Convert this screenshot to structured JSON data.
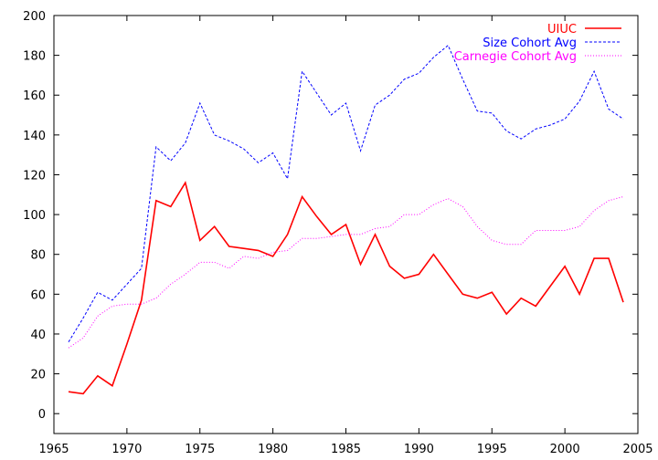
{
  "chart_data": {
    "type": "line",
    "title": "",
    "xlabel": "",
    "ylabel": "",
    "xlim": [
      1965,
      2005
    ],
    "ylim": [
      -10,
      200
    ],
    "xticks": [
      1965,
      1970,
      1975,
      1980,
      1985,
      1990,
      1995,
      2000,
      2005
    ],
    "yticks": [
      0,
      20,
      40,
      60,
      80,
      100,
      120,
      140,
      160,
      180,
      200
    ],
    "grid": false,
    "legend_position": "top-right",
    "series": [
      {
        "name": "UIUC",
        "color": "#ff0000",
        "style": "solid",
        "x": [
          1966,
          1967,
          1968,
          1969,
          1970,
          1971,
          1972,
          1973,
          1974,
          1975,
          1976,
          1977,
          1978,
          1979,
          1980,
          1981,
          1982,
          1983,
          1984,
          1985,
          1986,
          1987,
          1988,
          1989,
          1990,
          1991,
          1992,
          1993,
          1994,
          1995,
          1996,
          1997,
          1998,
          1999,
          2000,
          2001,
          2002,
          2003,
          2004
        ],
        "y": [
          11,
          10,
          19,
          14,
          35,
          57,
          107,
          104,
          116,
          87,
          94,
          84,
          83,
          82,
          79,
          90,
          109,
          99,
          90,
          95,
          75,
          90,
          74,
          68,
          70,
          80,
          70,
          60,
          58,
          61,
          50,
          58,
          54,
          64,
          74,
          60,
          78,
          78,
          56
        ]
      },
      {
        "name": "Size Cohort Avg",
        "color": "#0000ff",
        "style": "dashed",
        "x": [
          1966,
          1967,
          1968,
          1969,
          1970,
          1971,
          1972,
          1973,
          1974,
          1975,
          1976,
          1977,
          1978,
          1979,
          1980,
          1981,
          1982,
          1983,
          1984,
          1985,
          1986,
          1987,
          1988,
          1989,
          1990,
          1991,
          1992,
          1993,
          1994,
          1995,
          1996,
          1997,
          1998,
          1999,
          2000,
          2001,
          2002,
          2003,
          2004
        ],
        "y": [
          36,
          48,
          61,
          57,
          65,
          73,
          134,
          127,
          136,
          156,
          140,
          137,
          133,
          126,
          131,
          118,
          172,
          161,
          150,
          156,
          132,
          155,
          160,
          168,
          171,
          179,
          185,
          168,
          152,
          151,
          142,
          138,
          143,
          145,
          148,
          157,
          172,
          153,
          148
        ]
      },
      {
        "name": "Carnegie Cohort Avg",
        "color": "#ff00ff",
        "style": "dotted",
        "x": [
          1966,
          1967,
          1968,
          1969,
          1970,
          1971,
          1972,
          1973,
          1974,
          1975,
          1976,
          1977,
          1978,
          1979,
          1980,
          1981,
          1982,
          1983,
          1984,
          1985,
          1986,
          1987,
          1988,
          1989,
          1990,
          1991,
          1992,
          1993,
          1994,
          1995,
          1996,
          1997,
          1998,
          1999,
          2000,
          2001,
          2002,
          2003,
          2004
        ],
        "y": [
          33,
          38,
          49,
          54,
          55,
          55,
          58,
          65,
          70,
          76,
          76,
          73,
          79,
          78,
          81,
          82,
          88,
          88,
          89,
          90,
          90,
          93,
          94,
          100,
          100,
          105,
          108,
          104,
          94,
          87,
          85,
          85,
          92,
          92,
          92,
          94,
          102,
          107,
          109
        ]
      }
    ]
  }
}
